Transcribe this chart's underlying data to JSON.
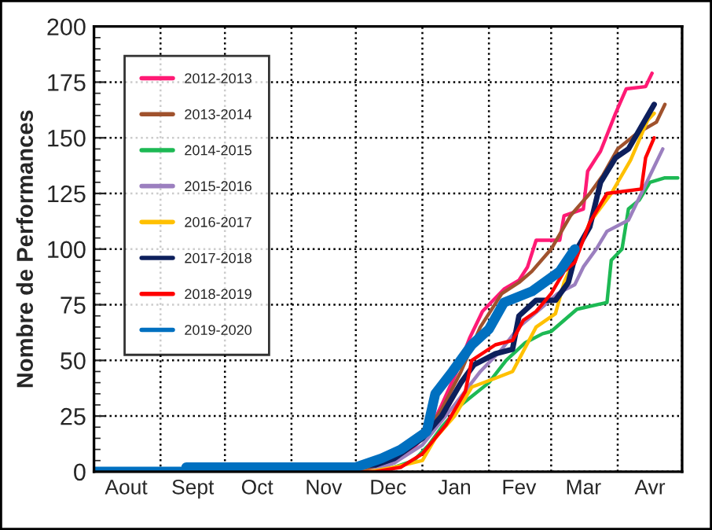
{
  "chart_data": {
    "type": "line",
    "ylabel": "Nombre de Performances",
    "ylim": [
      0,
      200
    ],
    "yticks": [
      0,
      25,
      50,
      75,
      100,
      125,
      150,
      175,
      200
    ],
    "xlim": [
      "2019-08-01",
      "2020-05-01"
    ],
    "xticks": [
      {
        "value": "2019-08-01",
        "label": null
      },
      {
        "value": "2019-08-16",
        "label": "Aout"
      },
      {
        "value": "2019-09-01",
        "label": null
      },
      {
        "value": "2019-09-16",
        "label": "Sept"
      },
      {
        "value": "2019-10-01",
        "label": null
      },
      {
        "value": "2019-10-16",
        "label": "Oct"
      },
      {
        "value": "2019-11-01",
        "label": null
      },
      {
        "value": "2019-11-16",
        "label": "Nov"
      },
      {
        "value": "2019-12-01",
        "label": null
      },
      {
        "value": "2019-12-16",
        "label": "Dec"
      },
      {
        "value": "2020-01-01",
        "label": null
      },
      {
        "value": "2020-01-16",
        "label": "Jan"
      },
      {
        "value": "2020-02-01",
        "label": null
      },
      {
        "value": "2020-02-15",
        "label": "Fev"
      },
      {
        "value": "2020-03-01",
        "label": null
      },
      {
        "value": "2020-03-16",
        "label": "Mar"
      },
      {
        "value": "2020-04-01",
        "label": null
      },
      {
        "value": "2020-04-16",
        "label": "Avr"
      },
      {
        "value": "2020-05-01",
        "label": null
      }
    ],
    "grid": true,
    "legend": "top left",
    "marker": "none",
    "line_style": "solid",
    "series": [
      {
        "name": "2012-2013",
        "color": "#ff1a75",
        "x": [
          "2019-12-13",
          "2019-12-25",
          "2020-01-04",
          "2020-01-10",
          "2020-01-17",
          "2020-01-23",
          "2020-01-29",
          "2020-02-08",
          "2020-02-15",
          "2020-02-19",
          "2020-02-23",
          "2020-03-05",
          "2020-03-07",
          "2020-03-16",
          "2020-03-18",
          "2020-03-24",
          "2020-03-31",
          "2020-04-05",
          "2020-04-14",
          "2020-04-17"
        ],
        "values": [
          3,
          8,
          18,
          30,
          45,
          60,
          72,
          82,
          86,
          92,
          104,
          104,
          115,
          118,
          135,
          144,
          161,
          172,
          173,
          179
        ]
      },
      {
        "name": "2013-2014",
        "color": "#a0522d",
        "x": [
          "2019-08-01",
          "2019-12-04",
          "2019-12-19",
          "2020-01-01",
          "2020-01-10",
          "2020-01-19",
          "2020-01-28",
          "2020-02-07",
          "2020-02-15",
          "2020-02-21",
          "2020-03-01",
          "2020-03-10",
          "2020-03-19",
          "2020-03-25",
          "2020-04-01",
          "2020-04-10",
          "2020-04-19",
          "2020-04-23"
        ],
        "values": [
          0,
          0,
          5,
          15,
          28,
          45,
          65,
          80,
          85,
          90,
          100,
          115,
          125,
          133,
          145,
          152,
          157,
          165
        ]
      },
      {
        "name": "2014-2015",
        "color": "#1db954",
        "x": [
          "2019-08-01",
          "2019-12-10",
          "2019-12-19",
          "2019-12-28",
          "2020-01-04",
          "2020-01-10",
          "2020-01-19",
          "2020-02-01",
          "2020-02-09",
          "2020-02-18",
          "2020-02-26",
          "2020-03-01",
          "2020-03-13",
          "2020-03-27",
          "2020-03-29",
          "2020-04-03",
          "2020-04-06",
          "2020-04-11",
          "2020-04-16",
          "2020-04-23",
          "2020-04-29"
        ],
        "values": [
          0,
          0,
          2,
          5,
          12,
          20,
          30,
          40,
          50,
          58,
          62,
          63,
          73,
          76,
          95,
          100,
          118,
          122,
          130,
          132,
          132
        ]
      },
      {
        "name": "2015-2016",
        "color": "#9b7fbf",
        "x": [
          "2019-08-01",
          "2019-12-07",
          "2019-12-19",
          "2020-01-01",
          "2020-01-16",
          "2020-01-28",
          "2020-02-07",
          "2020-02-15",
          "2020-02-26",
          "2020-03-04",
          "2020-03-12",
          "2020-03-16",
          "2020-03-22",
          "2020-03-27",
          "2020-04-06",
          "2020-04-10",
          "2020-04-18",
          "2020-04-22"
        ],
        "values": [
          0,
          0,
          4,
          12,
          30,
          45,
          55,
          65,
          74,
          80,
          84,
          92,
          100,
          108,
          113,
          121,
          137,
          145
        ]
      },
      {
        "name": "2016-2017",
        "color": "#ffc000",
        "x": [
          "2019-08-01",
          "2019-12-07",
          "2019-12-19",
          "2020-01-01",
          "2020-01-07",
          "2020-01-16",
          "2020-01-24",
          "2020-02-04",
          "2020-02-12",
          "2020-02-23",
          "2020-03-03",
          "2020-03-07",
          "2020-03-14",
          "2020-03-19",
          "2020-03-29",
          "2020-04-07",
          "2020-04-15",
          "2020-04-18"
        ],
        "values": [
          0,
          0,
          2,
          5,
          15,
          25,
          38,
          42,
          45,
          65,
          71,
          85,
          100,
          112,
          125,
          140,
          158,
          161
        ]
      },
      {
        "name": "2017-2018",
        "color": "#0d1f5c",
        "x": [
          "2019-08-01",
          "2019-09-23",
          "2019-09-23",
          "2019-12-10",
          "2019-12-19",
          "2020-01-01",
          "2020-01-10",
          "2020-01-19",
          "2020-01-25",
          "2020-02-04",
          "2020-02-12",
          "2020-02-15",
          "2020-02-23",
          "2020-03-03",
          "2020-03-09",
          "2020-03-13",
          "2020-03-19",
          "2020-03-24",
          "2020-03-31",
          "2020-04-06",
          "2020-04-12",
          "2020-04-18"
        ],
        "values": [
          0,
          0,
          3,
          3,
          6,
          15,
          25,
          40,
          48,
          53,
          55,
          70,
          77,
          77,
          85,
          100,
          110,
          130,
          141,
          145,
          155,
          165
        ]
      },
      {
        "name": "2018-2019",
        "color": "#ff0000",
        "x": [
          "2019-08-01",
          "2019-12-10",
          "2019-12-22",
          "2020-01-01",
          "2020-01-12",
          "2020-01-21",
          "2020-01-24",
          "2020-02-04",
          "2020-02-12",
          "2020-02-17",
          "2020-02-23",
          "2020-03-01",
          "2020-03-07",
          "2020-03-12",
          "2020-03-19",
          "2020-03-27",
          "2020-04-12",
          "2020-04-14",
          "2020-04-18"
        ],
        "values": [
          0,
          0,
          2,
          8,
          21,
          36,
          50,
          57,
          59,
          68,
          72,
          80,
          90,
          94,
          112,
          125,
          127,
          141,
          150
        ]
      },
      {
        "name": "2019-2020",
        "color": "#0070c0",
        "x": [
          "2019-08-01",
          "2019-09-13",
          "2019-09-13",
          "2019-12-01",
          "2019-12-13",
          "2019-12-22",
          "2020-01-03",
          "2020-01-07",
          "2020-01-15",
          "2020-01-24",
          "2020-02-01",
          "2020-02-08",
          "2020-02-21",
          "2020-03-05",
          "2020-03-12"
        ],
        "values": [
          0,
          0,
          2,
          2,
          6,
          10,
          18,
          35,
          45,
          57,
          64,
          76,
          81,
          90,
          100
        ]
      }
    ]
  }
}
